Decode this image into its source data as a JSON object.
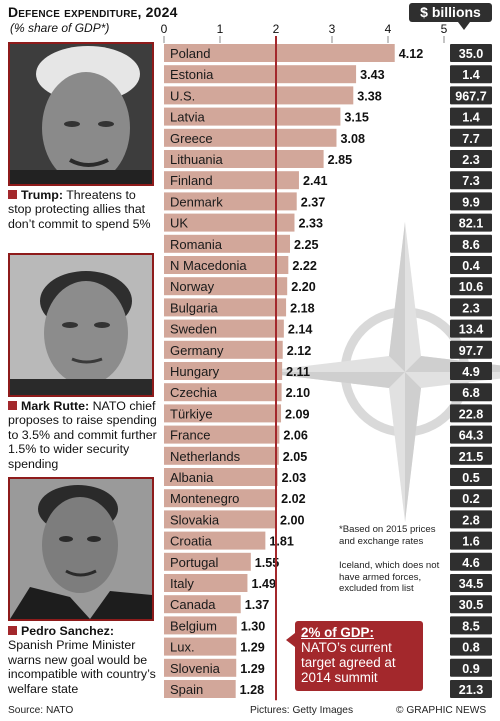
{
  "header": {
    "title": "Defence expenditure, 2024",
    "subtitle": "(% share of GDP*)",
    "billions_label": "$ billions"
  },
  "captions": {
    "trump_name": "Trump:",
    "trump_text": " Threatens to stop protecting allies that don’t commit to spend 5%",
    "rutte_name": "Mark Rutte:",
    "rutte_text": " NATO chief proposes to raise spending to 3.5% and commit further 1.5% to wider security spending",
    "sanchez_name": "Pedro Sanchez:",
    "sanchez_text": " Spanish Prime Minister warns new goal would be incompatible with country’s welfare state"
  },
  "notes": {
    "footnote_1": "*Based on 2015 prices and exchange rates",
    "footnote_2": "Iceland, which does not have armed forces, excluded from list"
  },
  "callout": {
    "heading": "2% of GDP:",
    "text": "NATO’s current target agreed at 2014 summit"
  },
  "footer": {
    "source": "Source: NATO",
    "pictures": "Pictures: Getty Images",
    "credit": "© GRAPHIC NEWS"
  },
  "colors": {
    "bar": "#d2a79a",
    "target_line": "#a3282c",
    "billions_box": "#2f2f2f",
    "accent": "#a3282c"
  },
  "chart_data": {
    "type": "bar",
    "orientation": "horizontal",
    "title": "Defence expenditure, 2024",
    "subtitle": "(% share of GDP*)",
    "xlim": [
      0,
      5
    ],
    "xticks": [
      0,
      1,
      2,
      3,
      4,
      5
    ],
    "reference_line": 2,
    "categories": [
      "Poland",
      "Estonia",
      "U.S.",
      "Latvia",
      "Greece",
      "Lithuania",
      "Finland",
      "Denmark",
      "UK",
      "Romania",
      "N Macedonia",
      "Norway",
      "Bulgaria",
      "Sweden",
      "Germany",
      "Hungary",
      "Czechia",
      "Türkiye",
      "France",
      "Netherlands",
      "Albania",
      "Montenegro",
      "Slovakia",
      "Croatia",
      "Portugal",
      "Italy",
      "Canada",
      "Belgium",
      "Lux.",
      "Slovenia",
      "Spain"
    ],
    "values": [
      4.12,
      3.43,
      3.38,
      3.15,
      3.08,
      2.85,
      2.41,
      2.37,
      2.33,
      2.25,
      2.22,
      2.2,
      2.18,
      2.14,
      2.12,
      2.11,
      2.1,
      2.09,
      2.06,
      2.05,
      2.03,
      2.02,
      2.0,
      1.81,
      1.55,
      1.49,
      1.37,
      1.3,
      1.29,
      1.29,
      1.28
    ],
    "value_labels": [
      "4.12",
      "3.43",
      "3.38",
      "3.15",
      "3.08",
      "2.85",
      "2.41",
      "2.37",
      "2.33",
      "2.25",
      "2.22",
      "2.20",
      "2.18",
      "2.14",
      "2.12",
      "2.11",
      "2.10",
      "2.09",
      "2.06",
      "2.05",
      "2.03",
      "2.02",
      "2.00",
      "1.81",
      "1.55",
      "1.49",
      "1.37",
      "1.30",
      "1.29",
      "1.29",
      "1.28"
    ],
    "billions": [
      "35.0",
      "1.4",
      "967.7",
      "1.4",
      "7.7",
      "2.3",
      "7.3",
      "9.9",
      "82.1",
      "8.6",
      "0.4",
      "10.6",
      "2.3",
      "13.4",
      "97.7",
      "4.9",
      "6.8",
      "22.8",
      "64.3",
      "21.5",
      "0.5",
      "0.2",
      "2.8",
      "1.6",
      "4.6",
      "34.5",
      "30.5",
      "8.5",
      "0.8",
      "0.9",
      "21.3"
    ]
  }
}
